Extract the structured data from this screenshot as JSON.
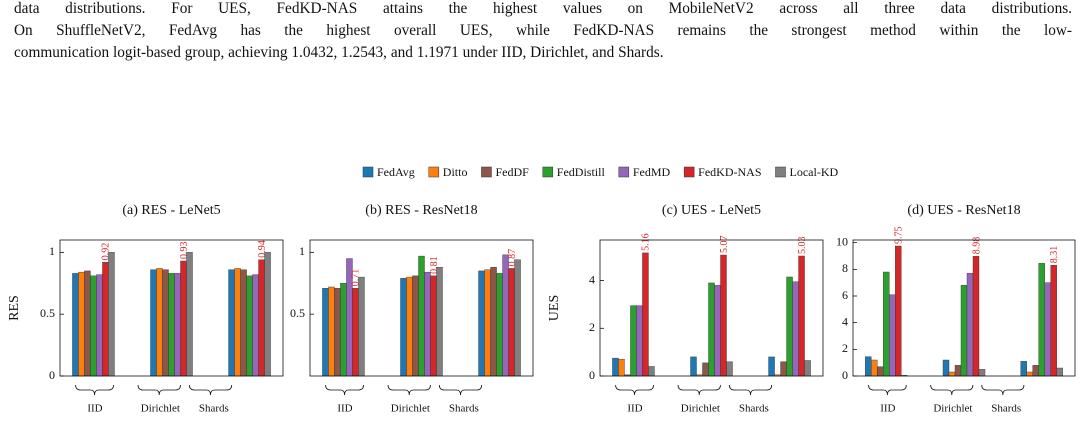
{
  "paragraph": [
    "data distributions. For UES, FedKD-NAS attains the highest values on MobileNetV2 across all three data distributions.",
    "On ShuffleNetV2, FedAvg has the highest overall UES, while FedKD-NAS remains the strongest method within the low-",
    "communication logit-based group, achieving 1.0432, 1.2543, and 1.1971 under IID, Dirichlet, and Shards."
  ],
  "legend": [
    {
      "name": "FedAvg",
      "color": "#1f77b4"
    },
    {
      "name": "Ditto",
      "color": "#ff7f0e"
    },
    {
      "name": "FedDF",
      "color": "#8c564b"
    },
    {
      "name": "FedDistill",
      "color": "#2ca02c"
    },
    {
      "name": "FedMD",
      "color": "#9467bd"
    },
    {
      "name": "FedKD-NAS",
      "color": "#d62728",
      "data_labels": true
    },
    {
      "name": "Local-KD",
      "color": "#7f7f7f"
    }
  ],
  "chart_data": [
    {
      "type": "bar",
      "title": "(a) RES - LeNet5",
      "ylabel": "RES",
      "categories": [
        "IID",
        "Dirichlet",
        "Shards"
      ],
      "ylim": [
        0,
        1.1
      ],
      "yticks": [
        0,
        0.5,
        1
      ],
      "series": [
        {
          "values": [
            0.83,
            0.86,
            0.86
          ]
        },
        {
          "values": [
            0.84,
            0.87,
            0.87
          ]
        },
        {
          "values": [
            0.85,
            0.86,
            0.86
          ]
        },
        {
          "values": [
            0.81,
            0.83,
            0.81
          ]
        },
        {
          "values": [
            0.82,
            0.83,
            0.82
          ]
        },
        {
          "values": [
            0.92,
            0.93,
            0.94
          ]
        },
        {
          "values": [
            1.0,
            1.0,
            1.0
          ]
        }
      ]
    },
    {
      "type": "bar",
      "title": "(b) RES - ResNet18",
      "categories": [
        "IID",
        "Dirichlet",
        "Shards"
      ],
      "ylim": [
        0,
        1.1
      ],
      "yticks": [
        0.5,
        1
      ],
      "series": [
        {
          "values": [
            0.71,
            0.79,
            0.85
          ]
        },
        {
          "values": [
            0.72,
            0.8,
            0.86
          ]
        },
        {
          "values": [
            0.71,
            0.81,
            0.88
          ]
        },
        {
          "values": [
            0.75,
            0.97,
            0.83
          ]
        },
        {
          "values": [
            0.95,
            0.84,
            0.98
          ]
        },
        {
          "values": [
            0.71,
            0.81,
            0.87
          ]
        },
        {
          "values": [
            0.8,
            0.88,
            0.94
          ]
        }
      ]
    },
    {
      "type": "bar",
      "title": "(c) UES - LeNet5",
      "ylabel": "UES",
      "categories": [
        "IID",
        "Dirichlet",
        "Shards"
      ],
      "ylim": [
        0,
        5.7
      ],
      "yticks": [
        0,
        2,
        4
      ],
      "series": [
        {
          "values": [
            0.75,
            0.8,
            0.8
          ]
        },
        {
          "values": [
            0.7,
            0.05,
            0.05
          ]
        },
        {
          "values": [
            0.05,
            0.55,
            0.6
          ]
        },
        {
          "values": [
            2.95,
            3.9,
            4.15
          ]
        },
        {
          "values": [
            2.95,
            3.8,
            3.95
          ]
        },
        {
          "values": [
            5.16,
            5.07,
            5.03
          ]
        },
        {
          "values": [
            0.4,
            0.6,
            0.65
          ]
        }
      ]
    },
    {
      "type": "bar",
      "title": "(d) UES - ResNet18",
      "categories": [
        "IID",
        "Dirichlet",
        "Shards"
      ],
      "ylim": [
        0,
        10.2
      ],
      "yticks": [
        0,
        2,
        4,
        6,
        8,
        10
      ],
      "series": [
        {
          "values": [
            1.45,
            1.2,
            1.1
          ]
        },
        {
          "values": [
            1.2,
            0.3,
            0.3
          ]
        },
        {
          "values": [
            0.7,
            0.8,
            0.8
          ]
        },
        {
          "values": [
            7.8,
            6.8,
            8.45
          ]
        },
        {
          "values": [
            6.1,
            7.7,
            7.0
          ]
        },
        {
          "values": [
            9.75,
            8.98,
            8.31
          ]
        },
        {
          "values": [
            0.05,
            0.5,
            0.6
          ]
        }
      ]
    }
  ]
}
